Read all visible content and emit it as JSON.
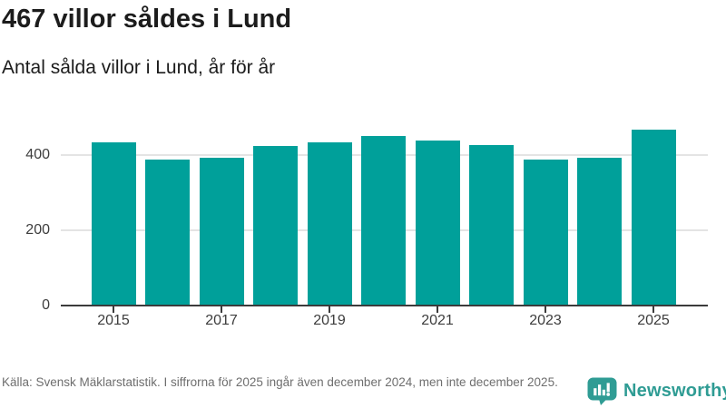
{
  "chart_data": {
    "type": "bar",
    "title": "467 villor såldes i Lund",
    "subtitle": "Antal sålda villor i Lund, år för år",
    "categories": [
      "2015",
      "2016",
      "2017",
      "2018",
      "2019",
      "2020",
      "2021",
      "2022",
      "2023",
      "2024",
      "2025"
    ],
    "values": [
      434,
      389,
      392,
      425,
      434,
      450,
      439,
      426,
      388,
      392,
      467
    ],
    "x_tick_labels": [
      "2015",
      "2017",
      "2019",
      "2021",
      "2023",
      "2025"
    ],
    "y_tick_values": [
      0,
      200,
      400
    ],
    "ylim": [
      0,
      480
    ],
    "xlabel": "",
    "ylabel": "",
    "grid": "horizontal",
    "legend": "none",
    "bar_color": "#00a09a",
    "axis_color": "#3b3b3b",
    "gridline_color": "#e4e4e4",
    "tick_label_color": "#3d3d3d"
  },
  "footer": {
    "source_note": "Källa: Svensk Mäklarstatistik. I siffrorna för 2025 ingår även december 2024, men inte december 2025.",
    "brand": {
      "name": "Newsworthy",
      "color": "#2f9c94"
    }
  }
}
